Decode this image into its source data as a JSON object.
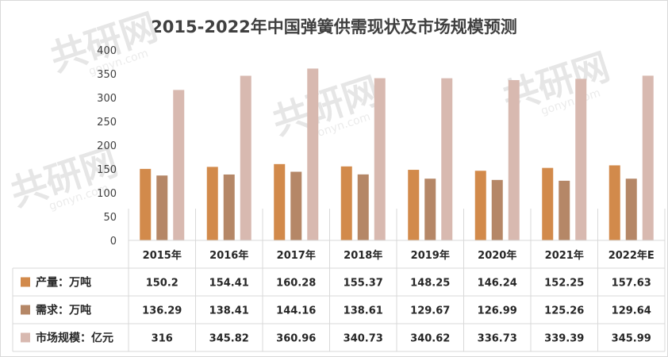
{
  "chart_data": {
    "type": "bar",
    "title": "2015-2022年中国弹簧供需现状及市场规模预测",
    "categories": [
      "2015年",
      "2016年",
      "2017年",
      "2018年",
      "2019年",
      "2020年",
      "2021年",
      "2022年E"
    ],
    "ylim": [
      0,
      400
    ],
    "yticks": [
      0,
      50,
      100,
      150,
      200,
      250,
      300,
      350,
      400
    ],
    "grid": false,
    "legend": "data-table",
    "series": [
      {
        "name": "产量：万吨",
        "color": "#d28a4b",
        "values": [
          150.2,
          154.41,
          160.28,
          155.37,
          148.25,
          146.24,
          152.25,
          157.63
        ],
        "labels": [
          "150.2",
          "154.41",
          "160.28",
          "155.37",
          "148.25",
          "146.24",
          "152.25",
          "157.63"
        ]
      },
      {
        "name": "需求：万吨",
        "color": "#b58767",
        "values": [
          136.29,
          138.41,
          144.16,
          138.61,
          129.67,
          126.99,
          125.26,
          129.64
        ],
        "labels": [
          "136.29",
          "138.41",
          "144.16",
          "138.61",
          "129.67",
          "126.99",
          "125.26",
          "129.64"
        ]
      },
      {
        "name": "市场规模：亿元",
        "color": "#d8b9b0",
        "values": [
          316,
          345.82,
          360.96,
          340.73,
          340.62,
          336.73,
          339.39,
          345.99
        ],
        "labels": [
          "316",
          "345.82",
          "360.96",
          "340.73",
          "340.62",
          "336.73",
          "339.39",
          "345.99"
        ]
      }
    ]
  },
  "watermark": {
    "logo": "共研网",
    "url": "gonyn.com"
  }
}
